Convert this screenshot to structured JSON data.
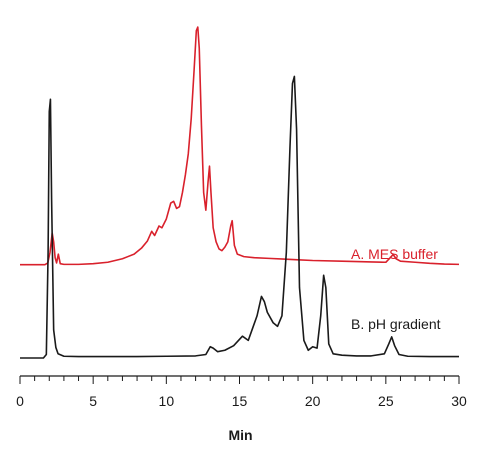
{
  "chart_data": {
    "type": "line",
    "xlabel": "Min",
    "xlim": [
      0,
      30
    ],
    "ylim": [
      -0.05,
      1.0
    ],
    "grid": false,
    "x_ticks": [
      0,
      5,
      10,
      15,
      20,
      25,
      30
    ],
    "series": [
      {
        "name": "A. MES buffer",
        "color": "#d9212c",
        "baseline": 0.265,
        "points": [
          [
            0,
            0.265
          ],
          [
            1.7,
            0.265
          ],
          [
            1.9,
            0.27
          ],
          [
            2.05,
            0.3
          ],
          [
            2.2,
            0.355
          ],
          [
            2.3,
            0.33
          ],
          [
            2.4,
            0.285
          ],
          [
            2.5,
            0.27
          ],
          [
            2.62,
            0.295
          ],
          [
            2.75,
            0.268
          ],
          [
            3,
            0.266
          ],
          [
            4,
            0.266
          ],
          [
            5,
            0.268
          ],
          [
            6,
            0.272
          ],
          [
            7,
            0.282
          ],
          [
            7.8,
            0.295
          ],
          [
            8.3,
            0.312
          ],
          [
            8.7,
            0.332
          ],
          [
            9.0,
            0.36
          ],
          [
            9.2,
            0.348
          ],
          [
            9.5,
            0.375
          ],
          [
            9.7,
            0.37
          ],
          [
            10.0,
            0.395
          ],
          [
            10.3,
            0.44
          ],
          [
            10.5,
            0.445
          ],
          [
            10.7,
            0.425
          ],
          [
            10.9,
            0.43
          ],
          [
            11.1,
            0.47
          ],
          [
            11.3,
            0.52
          ],
          [
            11.5,
            0.58
          ],
          [
            11.7,
            0.68
          ],
          [
            11.9,
            0.82
          ],
          [
            12.05,
            0.93
          ],
          [
            12.15,
            0.94
          ],
          [
            12.25,
            0.88
          ],
          [
            12.4,
            0.66
          ],
          [
            12.55,
            0.47
          ],
          [
            12.7,
            0.42
          ],
          [
            12.85,
            0.5
          ],
          [
            12.95,
            0.545
          ],
          [
            13.05,
            0.47
          ],
          [
            13.2,
            0.37
          ],
          [
            13.4,
            0.33
          ],
          [
            13.6,
            0.31
          ],
          [
            13.8,
            0.305
          ],
          [
            14.0,
            0.315
          ],
          [
            14.2,
            0.33
          ],
          [
            14.4,
            0.375
          ],
          [
            14.5,
            0.39
          ],
          [
            14.65,
            0.32
          ],
          [
            14.85,
            0.295
          ],
          [
            15.3,
            0.288
          ],
          [
            16,
            0.285
          ],
          [
            17,
            0.283
          ],
          [
            18,
            0.281
          ],
          [
            19,
            0.279
          ],
          [
            20,
            0.277
          ],
          [
            22,
            0.275
          ],
          [
            24,
            0.273
          ],
          [
            25,
            0.272
          ],
          [
            25.3,
            0.285
          ],
          [
            25.5,
            0.294
          ],
          [
            25.7,
            0.282
          ],
          [
            26,
            0.275
          ],
          [
            27,
            0.272
          ],
          [
            28,
            0.269
          ],
          [
            29,
            0.267
          ],
          [
            30,
            0.266
          ]
        ]
      },
      {
        "name": "B. pH gradient",
        "color": "#1a1a1a",
        "baseline": 0.0,
        "points": [
          [
            0,
            0.0
          ],
          [
            1.6,
            0.0
          ],
          [
            1.8,
            0.01
          ],
          [
            1.92,
            0.3
          ],
          [
            2.0,
            0.7
          ],
          [
            2.08,
            0.735
          ],
          [
            2.16,
            0.45
          ],
          [
            2.3,
            0.08
          ],
          [
            2.45,
            0.03
          ],
          [
            2.6,
            0.012
          ],
          [
            3,
            0.005
          ],
          [
            4,
            0.004
          ],
          [
            5,
            0.004
          ],
          [
            6,
            0.004
          ],
          [
            8,
            0.004
          ],
          [
            10,
            0.005
          ],
          [
            12,
            0.006
          ],
          [
            12.7,
            0.01
          ],
          [
            13.0,
            0.032
          ],
          [
            13.2,
            0.028
          ],
          [
            13.5,
            0.018
          ],
          [
            14,
            0.022
          ],
          [
            14.6,
            0.035
          ],
          [
            15.2,
            0.062
          ],
          [
            15.6,
            0.05
          ],
          [
            15.9,
            0.085
          ],
          [
            16.2,
            0.12
          ],
          [
            16.5,
            0.175
          ],
          [
            16.7,
            0.16
          ],
          [
            16.9,
            0.13
          ],
          [
            17.3,
            0.1
          ],
          [
            17.6,
            0.09
          ],
          [
            17.9,
            0.12
          ],
          [
            18.2,
            0.3
          ],
          [
            18.45,
            0.6
          ],
          [
            18.62,
            0.78
          ],
          [
            18.75,
            0.8
          ],
          [
            18.9,
            0.65
          ],
          [
            19.1,
            0.2
          ],
          [
            19.4,
            0.05
          ],
          [
            19.7,
            0.022
          ],
          [
            20.0,
            0.032
          ],
          [
            20.3,
            0.028
          ],
          [
            20.55,
            0.12
          ],
          [
            20.75,
            0.235
          ],
          [
            20.9,
            0.2
          ],
          [
            21.1,
            0.04
          ],
          [
            21.4,
            0.012
          ],
          [
            22,
            0.008
          ],
          [
            23,
            0.006
          ],
          [
            24,
            0.006
          ],
          [
            24.9,
            0.012
          ],
          [
            25.2,
            0.04
          ],
          [
            25.4,
            0.06
          ],
          [
            25.6,
            0.035
          ],
          [
            25.9,
            0.01
          ],
          [
            26.5,
            0.005
          ],
          [
            28,
            0.004
          ],
          [
            30,
            0.004
          ]
        ]
      }
    ]
  }
}
